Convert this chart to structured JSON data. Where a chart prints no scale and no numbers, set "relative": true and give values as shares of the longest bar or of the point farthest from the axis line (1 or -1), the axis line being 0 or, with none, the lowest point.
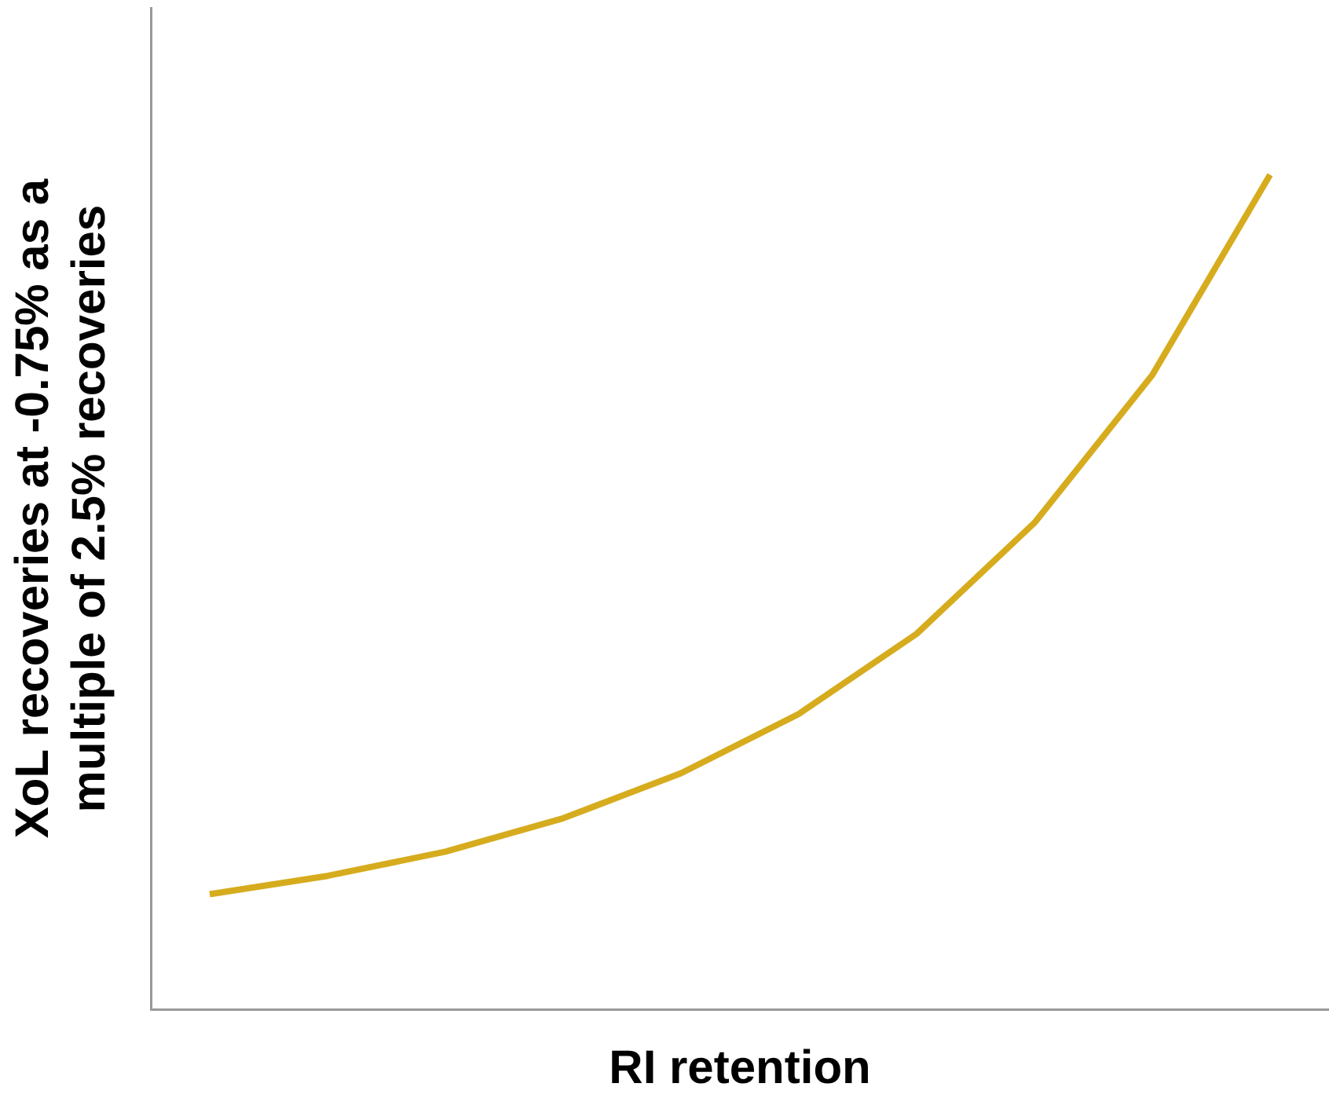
{
  "chart_data": {
    "type": "line",
    "relative": true,
    "xlabel": "RI retention",
    "ylabel": "XoL recoveries at -0.75% as a multiple of 2.5% recoveries",
    "categories": [
      null,
      null,
      null,
      null,
      null,
      null,
      null,
      null,
      null,
      null
    ],
    "series": [
      {
        "color": "#d6ac1e",
        "values": [
          0.138,
          0.16,
          0.189,
          0.229,
          0.283,
          0.354,
          0.45,
          0.583,
          0.76,
          1
        ]
      }
    ],
    "legend": false,
    "grid": false,
    "marker": "none",
    "line_style": "solid"
  }
}
